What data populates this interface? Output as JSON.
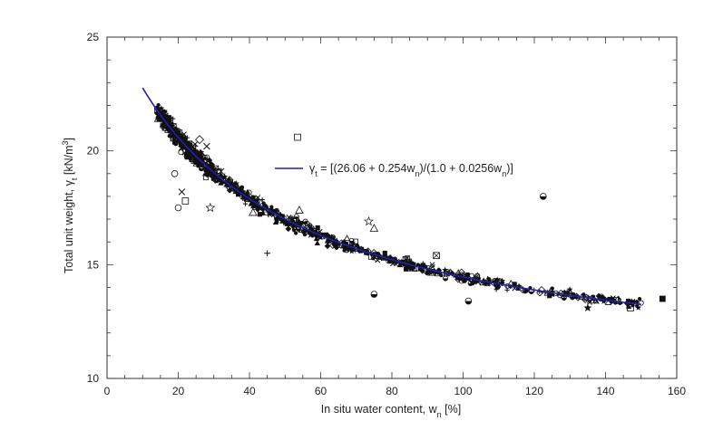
{
  "chart_data": {
    "type": "scatter",
    "title": "",
    "xlabel": {
      "text": "In situ water content, w",
      "sub": "n",
      "suffix": " [%]"
    },
    "ylabel": {
      "text": "Total unit weight, γ",
      "sub": "t",
      "mid": " [kN/m",
      "sup": "3",
      "suffix": "]"
    },
    "xlim": [
      0,
      160
    ],
    "ylim": [
      10,
      25
    ],
    "x_ticks": [
      0,
      20,
      40,
      60,
      80,
      100,
      120,
      140,
      160
    ],
    "x_tick_labels": [
      "0",
      "20",
      "40",
      "60",
      "80",
      "100",
      "120",
      "140",
      "160"
    ],
    "y_ticks": [
      10,
      15,
      20,
      25
    ],
    "y_tick_labels": [
      "10",
      "15",
      "20",
      "25"
    ],
    "grid": false,
    "legend_position": "upper-center",
    "fit_line": {
      "name_parts": [
        {
          "t": "γ",
          "s": "base"
        },
        {
          "t": "t",
          "s": "sub"
        },
        {
          "t": " = [(26.06 + 0.254w",
          "s": "base"
        },
        {
          "t": "n",
          "s": "sub"
        },
        {
          "t": ")/(1.0 + 0.0256w",
          "s": "base"
        },
        {
          "t": "n",
          "s": "sub"
        },
        {
          "t": ")]",
          "s": "base"
        }
      ],
      "a": 26.06,
      "b": 0.254,
      "c": 1.0,
      "d": 0.0256,
      "x_range": [
        10,
        150
      ],
      "color": "#1f1fb4"
    },
    "outliers": [
      {
        "x": 53.5,
        "y": 20.6,
        "marker": "square"
      },
      {
        "x": 22,
        "y": 17.8,
        "marker": "square"
      },
      {
        "x": 26,
        "y": 20.5,
        "marker": "diamond"
      },
      {
        "x": 28,
        "y": 20.2,
        "marker": "x"
      },
      {
        "x": 32,
        "y": 19.1,
        "marker": "x"
      },
      {
        "x": 19,
        "y": 19.0,
        "marker": "circle"
      },
      {
        "x": 20,
        "y": 17.5,
        "marker": "circle"
      },
      {
        "x": 21,
        "y": 18.2,
        "marker": "x"
      },
      {
        "x": 29,
        "y": 17.5,
        "marker": "star"
      },
      {
        "x": 41,
        "y": 17.3,
        "marker": "triangle"
      },
      {
        "x": 45,
        "y": 15.5,
        "marker": "plus"
      },
      {
        "x": 58,
        "y": 16.5,
        "marker": "star"
      },
      {
        "x": 54,
        "y": 17.4,
        "marker": "triangle"
      },
      {
        "x": 73.5,
        "y": 16.9,
        "marker": "star"
      },
      {
        "x": 75,
        "y": 16.6,
        "marker": "triangle"
      },
      {
        "x": 92.5,
        "y": 15.4,
        "marker": "square-x"
      },
      {
        "x": 75,
        "y": 13.7,
        "marker": "half"
      },
      {
        "x": 101.5,
        "y": 13.4,
        "marker": "half"
      },
      {
        "x": 122.5,
        "y": 18.0,
        "marker": "half"
      },
      {
        "x": 135,
        "y": 13.1,
        "marker": "star-solid"
      },
      {
        "x": 156,
        "y": 13.5,
        "marker": "square-solid"
      },
      {
        "x": 147,
        "y": 13.1,
        "marker": "square"
      },
      {
        "x": 144,
        "y": 13.5,
        "marker": "moon"
      }
    ],
    "cluster_note": "Dense scatter of several hundred measured points following the fitted curve from about w = 14 % to w = 150 %."
  },
  "colors": {
    "axis": "#333333",
    "points": "#111111",
    "fit_line": "#1f1fb4"
  }
}
